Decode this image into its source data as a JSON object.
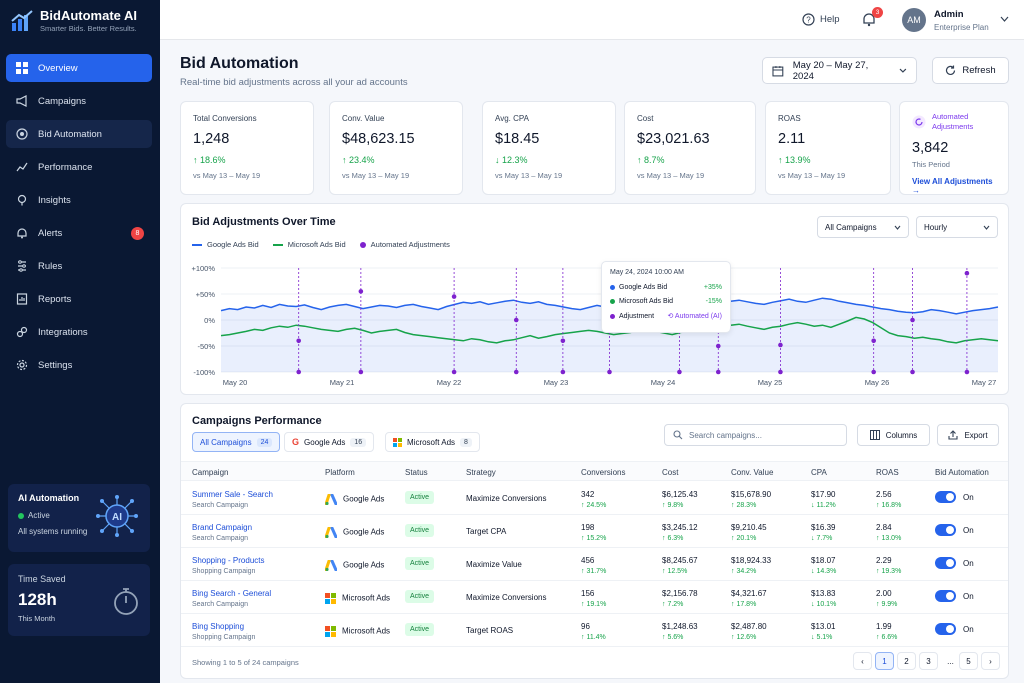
{
  "app": {
    "name": "BidAutomate AI",
    "tagline": "Smarter Bids. Better Results."
  },
  "sidebar": {
    "items": [
      {
        "label": "Overview",
        "icon": "grid-icon"
      },
      {
        "label": "Campaigns",
        "icon": "megaphone-icon"
      },
      {
        "label": "Bid Automation",
        "icon": "target-icon"
      },
      {
        "label": "Performance",
        "icon": "trend-icon"
      },
      {
        "label": "Insights",
        "icon": "pin-icon"
      },
      {
        "label": "Alerts",
        "icon": "bell-icon",
        "badge": "8"
      },
      {
        "label": "Rules",
        "icon": "rules-icon"
      },
      {
        "label": "Reports",
        "icon": "report-icon"
      },
      {
        "label": "Integrations",
        "icon": "link-icon"
      },
      {
        "label": "Settings",
        "icon": "gear-icon"
      }
    ],
    "ai_card": {
      "title": "AI Automation",
      "status": "Active",
      "sub": "All systems running",
      "icon_text": "AI"
    },
    "time_card": {
      "label": "Time Saved",
      "value": "128h",
      "sub": "This Month"
    }
  },
  "topbar": {
    "help": "Help",
    "notification_count": "3",
    "avatar_initials": "AM",
    "user_name": "Admin",
    "user_plan": "Enterprise Plan"
  },
  "page": {
    "title": "Bid Automation",
    "subtitle": "Real-time bid adjustments across all your ad accounts",
    "date_range": "May 20 – May 27, 2024",
    "refresh": "Refresh"
  },
  "kpis": [
    {
      "label": "Total Conversions",
      "value": "1,248",
      "delta": "↑ 18.6%",
      "compare": "vs May 13 – May 19"
    },
    {
      "label": "Conv. Value",
      "value": "$48,623.15",
      "delta": "↑ 23.4%",
      "compare": "vs May 13 – May 19"
    },
    {
      "label": "Avg. CPA",
      "value": "$18.45",
      "delta": "↓ 12.3%",
      "compare": "vs May 13 – May 19"
    },
    {
      "label": "Cost",
      "value": "$23,021.63",
      "delta": "↑ 8.7%",
      "compare": "vs May 13 – May 19"
    },
    {
      "label": "ROAS",
      "value": "2.11",
      "delta": "↑ 13.9%",
      "compare": "vs May 13 – May 19"
    }
  ],
  "auto_kpi": {
    "label_line1": "Automated",
    "label_line2": "Adjustments",
    "value": "3,842",
    "sub": "This Period",
    "link": "View All Adjustments →"
  },
  "chart": {
    "title": "Bid Adjustments Over Time",
    "campaign_filter": "All Campaigns",
    "granularity": "Hourly",
    "legend": [
      {
        "label": "Google Ads Bid",
        "color": "#2563eb"
      },
      {
        "label": "Microsoft Ads Bid",
        "color": "#16a34a"
      },
      {
        "label": "Automated Adjustments",
        "color": "#7e22ce"
      }
    ],
    "tooltip": {
      "date": "May 24, 2024 10:00 AM",
      "google_label": "Google Ads Bid",
      "google_value": "+35%",
      "ms_label": "Microsoft Ads Bid",
      "ms_value": "-15%",
      "adj_label": "Adjustment",
      "adj_value": "⟲ Automated (AI)"
    }
  },
  "chart_data": {
    "type": "line",
    "y_ticks": [
      "+100%",
      "+50%",
      "0%",
      "-50%",
      "-100%"
    ],
    "ylim": [
      -100,
      100
    ],
    "x_ticks": [
      "May 20",
      "May 21",
      "May 22",
      "May 23",
      "May 24",
      "May 25",
      "May 26",
      "May 27"
    ],
    "series": [
      {
        "name": "Google Ads Bid",
        "color": "#2563eb",
        "values": [
          18,
          22,
          20,
          25,
          23,
          28,
          24,
          30,
          27,
          26,
          29,
          24,
          20,
          25,
          28,
          30,
          26,
          22,
          25,
          28,
          27,
          24,
          28,
          30,
          26,
          23,
          20,
          26,
          30,
          34,
          32,
          35,
          30,
          33,
          36,
          38,
          34,
          32,
          35,
          30,
          28,
          25,
          22,
          20,
          24,
          28,
          25,
          22,
          26,
          30,
          35,
          32,
          28,
          26,
          30,
          28,
          25,
          22,
          26,
          30,
          34,
          36,
          38,
          35,
          32,
          30,
          34,
          37,
          40,
          36,
          34,
          38,
          42,
          40,
          36,
          33,
          30,
          28,
          25,
          22,
          20,
          17,
          15,
          14,
          16,
          20,
          18,
          15,
          12,
          15,
          18,
          20,
          22,
          25
        ]
      },
      {
        "name": "Microsoft Ads Bid",
        "color": "#16a34a",
        "values": [
          -30,
          -28,
          -25,
          -22,
          -18,
          -20,
          -15,
          -12,
          -14,
          -10,
          -12,
          -15,
          -18,
          -20,
          -22,
          -18,
          -16,
          -20,
          -25,
          -22,
          -20,
          -18,
          -24,
          -28,
          -30,
          -32,
          -34,
          -36,
          -38,
          -40,
          -36,
          -38,
          -42,
          -44,
          -40,
          -38,
          -34,
          -30,
          -35,
          -32,
          -28,
          -26,
          -24,
          -22,
          -20,
          -22,
          -25,
          -28,
          -26,
          -24,
          -20,
          -18,
          -22,
          -25,
          -28,
          -24,
          -20,
          -18,
          -15,
          -12,
          -14,
          -10,
          -8,
          -12,
          -15,
          -18,
          -14,
          -12,
          -8,
          -5,
          -8,
          -12,
          -10,
          -14,
          -8,
          -2,
          5,
          2,
          -5,
          -15,
          -25,
          -30,
          -32,
          -35,
          -33,
          -36,
          -38,
          -42,
          -44,
          -40,
          -38,
          -36,
          -38,
          -40
        ]
      }
    ],
    "adjustments": [
      {
        "x": 0.1,
        "y": 100,
        "y_end": -40
      },
      {
        "x": 0.18,
        "y": 100,
        "y_end": 55
      },
      {
        "x": 0.3,
        "y": 100,
        "y_end": 45
      },
      {
        "x": 0.38,
        "y": 100,
        "y_end": 0
      },
      {
        "x": 0.44,
        "y": 100,
        "y_end": -40
      },
      {
        "x": 0.5,
        "y": 100,
        "y_end": 45
      },
      {
        "x": 0.59,
        "y": 100,
        "y_end": 95
      },
      {
        "x": 0.64,
        "y": 100,
        "y_end": -50
      },
      {
        "x": 0.72,
        "y": 100,
        "y_end": -48
      },
      {
        "x": 0.84,
        "y": 100,
        "y_end": -40
      },
      {
        "x": 0.89,
        "y": 100,
        "y_end": 0
      },
      {
        "x": 0.96,
        "y": 100,
        "y_end": 90
      }
    ],
    "annotation": "May 24, 2024 10:00 AM: Google Ads Bid +35%, Microsoft Ads Bid -15%, Adjustment Automated (AI)"
  },
  "campaigns": {
    "title": "Campaigns Performance",
    "tabs": [
      {
        "label": "All Campaigns",
        "count": "24"
      },
      {
        "label": "Google Ads",
        "count": "16"
      },
      {
        "label": "Microsoft Ads",
        "count": "8"
      }
    ],
    "search_placeholder": "Search campaigns...",
    "columns_btn": "Columns",
    "export_btn": "Export",
    "headers": [
      "Campaign",
      "Platform",
      "Status",
      "Strategy",
      "Conversions",
      "Cost",
      "Conv. Value",
      "CPA",
      "ROAS",
      "Bid Automation"
    ],
    "rows": [
      {
        "name": "Summer Sale - Search",
        "type": "Search Campaign",
        "platform": "Google Ads",
        "status": "Active",
        "strategy": "Maximize Conversions",
        "conv": "342",
        "conv_d": "↑ 24.5%",
        "cost": "$6,125.43",
        "cost_d": "↑ 9.8%",
        "value": "$15,678.90",
        "value_d": "↑ 28.3%",
        "cpa": "$17.90",
        "cpa_d": "↓ 11.2%",
        "roas": "2.56",
        "roas_d": "↑ 16.8%",
        "toggle": "On"
      },
      {
        "name": "Brand Campaign",
        "type": "Search Campaign",
        "platform": "Google Ads",
        "status": "Active",
        "strategy": "Target CPA",
        "conv": "198",
        "conv_d": "↑ 15.2%",
        "cost": "$3,245.12",
        "cost_d": "↑ 6.3%",
        "value": "$9,210.45",
        "value_d": "↑ 20.1%",
        "cpa": "$16.39",
        "cpa_d": "↓ 7.7%",
        "roas": "2.84",
        "roas_d": "↑ 13.0%",
        "toggle": "On"
      },
      {
        "name": "Shopping - Products",
        "type": "Shopping Campaign",
        "platform": "Google Ads",
        "status": "Active",
        "strategy": "Maximize Value",
        "conv": "456",
        "conv_d": "↑ 31.7%",
        "cost": "$8,245.67",
        "cost_d": "↑ 12.5%",
        "value": "$18,924.33",
        "value_d": "↑ 34.2%",
        "cpa": "$18.07",
        "cpa_d": "↓ 14.3%",
        "roas": "2.29",
        "roas_d": "↑ 19.3%",
        "toggle": "On"
      },
      {
        "name": "Bing Search - General",
        "type": "Search Campaign",
        "platform": "Microsoft Ads",
        "status": "Active",
        "strategy": "Maximize Conversions",
        "conv": "156",
        "conv_d": "↑ 19.1%",
        "cost": "$2,156.78",
        "cost_d": "↑ 7.2%",
        "value": "$4,321.67",
        "value_d": "↑ 17.8%",
        "cpa": "$13.83",
        "cpa_d": "↓ 10.1%",
        "roas": "2.00",
        "roas_d": "↑ 9.9%",
        "toggle": "On"
      },
      {
        "name": "Bing Shopping",
        "type": "Shopping Campaign",
        "platform": "Microsoft Ads",
        "status": "Active",
        "strategy": "Target ROAS",
        "conv": "96",
        "conv_d": "↑ 11.4%",
        "cost": "$1,248.63",
        "cost_d": "↑ 5.6%",
        "value": "$2,487.80",
        "value_d": "↑ 12.6%",
        "cpa": "$13.01",
        "cpa_d": "↓ 5.1%",
        "roas": "1.99",
        "roas_d": "↑ 6.6%",
        "toggle": "On"
      }
    ],
    "footer": "Showing 1 to 5 of 24 campaigns",
    "pages": [
      "‹",
      "1",
      "2",
      "3",
      "...",
      "5",
      "›"
    ]
  }
}
